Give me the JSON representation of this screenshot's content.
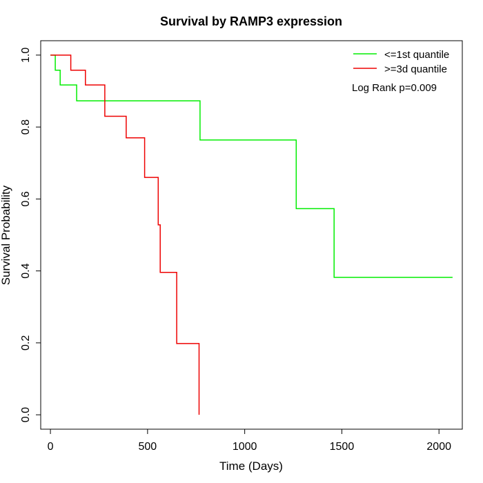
{
  "chart_data": {
    "type": "line",
    "subtype": "kaplan-meier step",
    "title": "Survival by RAMP3 expression",
    "xlabel": "Time (Days)",
    "ylabel": "Survival Probability",
    "xlim": [
      -50,
      2120
    ],
    "ylim": [
      -0.04,
      1.04
    ],
    "x_ticks": [
      0,
      500,
      1000,
      1500,
      2000
    ],
    "x_tick_labels": [
      "0",
      "500",
      "1000",
      "1500",
      "2000"
    ],
    "y_ticks": [
      0.0,
      0.2,
      0.4,
      0.6,
      0.8,
      1.0
    ],
    "y_tick_labels": [
      "0.0",
      "0.2",
      "0.4",
      "0.6",
      "0.8",
      "1.0"
    ],
    "grid": false,
    "legend_position": "top-right",
    "annotation": "Log Rank p=0.009",
    "series": [
      {
        "name": "<=1st quantile",
        "color": "#00ee00",
        "x": [
          0,
          25,
          25,
          50,
          50,
          135,
          135,
          770,
          770,
          1265,
          1265,
          1460,
          1460,
          2070
        ],
        "y": [
          1.0,
          1.0,
          0.958,
          0.958,
          0.917,
          0.917,
          0.873,
          0.873,
          0.764,
          0.764,
          0.573,
          0.573,
          0.382,
          0.382
        ]
      },
      {
        "name": ">=3d quantile",
        "color": "#ee0000",
        "x": [
          0,
          105,
          105,
          180,
          180,
          280,
          280,
          390,
          390,
          485,
          485,
          555,
          555,
          565,
          565,
          650,
          650,
          765,
          765
        ],
        "y": [
          1.0,
          1.0,
          0.958,
          0.958,
          0.917,
          0.917,
          0.83,
          0.83,
          0.77,
          0.77,
          0.66,
          0.66,
          0.528,
          0.528,
          0.396,
          0.396,
          0.198,
          0.198,
          0.0
        ]
      }
    ]
  }
}
